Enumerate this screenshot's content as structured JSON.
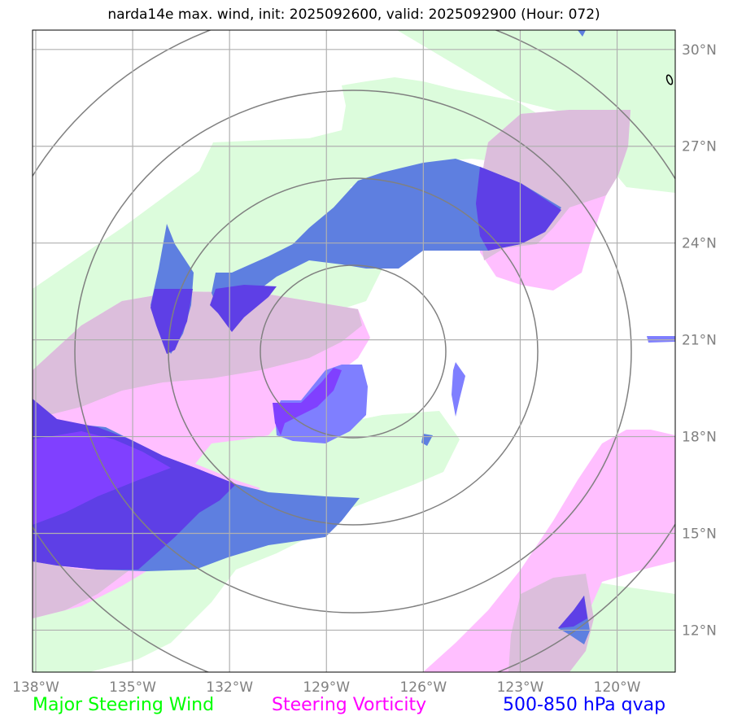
{
  "title": "narda14e max. wind, init: 2025092600, valid: 2025092900 (Hour: 072)",
  "legend": [
    {
      "label": "Major Steering Wind",
      "color": "#00ff00"
    },
    {
      "label": "Steering Vorticity",
      "color": "#ff00ff"
    },
    {
      "label": "500-850 hPa qvap",
      "color": "#0000ff"
    }
  ],
  "map": {
    "lon_ticks": [
      "138°W",
      "135°W",
      "132°W",
      "129°W",
      "126°W",
      "123°W",
      "120°W"
    ],
    "lat_ticks": [
      "30°N",
      "27°N",
      "24°N",
      "21°N",
      "18°N",
      "15°N",
      "12°N"
    ],
    "lon_range": [
      -138.1,
      -118.2
    ],
    "lat_range": [
      10.7,
      30.6
    ],
    "gridlines": true,
    "range_rings_center": {
      "lon": -128.4,
      "lat": 20.8
    },
    "colors": {
      "wind": "#dcfcdc",
      "vorticity": "#ffbfff",
      "vorticity_overlap": "#dcbedc",
      "qvap_light": "#7f7fff",
      "qvap_mid": "#5e7fe0",
      "qvap_dark": "#5e3fe6",
      "qvap_violet": "#8040ff",
      "rings": "#808080",
      "grid": "#b0b0b0"
    }
  }
}
